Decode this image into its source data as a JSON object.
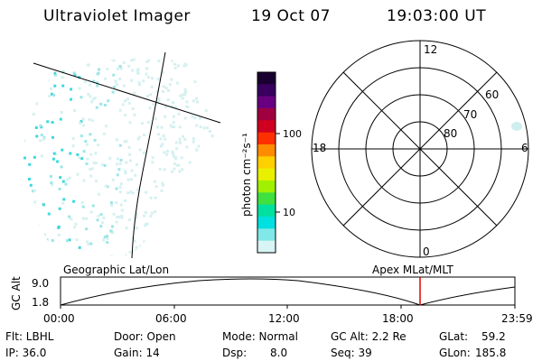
{
  "header": {
    "instrument": "Ultraviolet Imager",
    "date": "19 Oct 07",
    "time": "19:03:00 UT"
  },
  "colorbar": {
    "unit_label": "photon cm⁻²s⁻¹",
    "ticks": [
      "100",
      "10"
    ],
    "colors": [
      "#1a0030",
      "#3a0060",
      "#6a0080",
      "#a00040",
      "#d00020",
      "#ff3000",
      "#ff8c00",
      "#ffd000",
      "#e8f000",
      "#a0f000",
      "#40e040",
      "#00e0a0",
      "#00e0e0",
      "#80e8e8",
      "#d8f4f4"
    ]
  },
  "polar": {
    "mlt_labels": {
      "top": "12",
      "left": "18",
      "right": "6",
      "bottom": "0"
    },
    "lat_labels": [
      "60",
      "70",
      "80"
    ]
  },
  "timeline": {
    "left_label": "Geographic Lat/Lon",
    "right_label": "Apex MLat/MLT",
    "yaxis_title": "GC Alt",
    "y_ticks": [
      "9.0",
      "1.8"
    ],
    "x_ticks": [
      "00:00",
      "06:00",
      "12:00",
      "18:00",
      "23:59"
    ],
    "marker_color": "#e00000"
  },
  "info": {
    "flt": "Flt: LBHL",
    "ip": "IP: 36.0",
    "door": "Door: Open",
    "gain": "Gain: 14",
    "mode": "Mode: Normal",
    "dsp_label": "Dsp:",
    "dsp_value": "8.0",
    "gc_alt": "GC Alt: 2.2 Re",
    "seq": "Seq: 39",
    "glat_label": "GLat:",
    "glat_value": "59.2",
    "glon_label": "GLon:",
    "glon_value": "185.8"
  }
}
